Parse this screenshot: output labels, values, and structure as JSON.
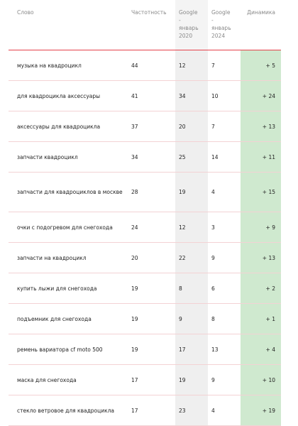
{
  "headers": {
    "word": "Слово",
    "freq": "Частотность",
    "g2020_line1": "Google",
    "g2020_line2": "-",
    "g2020_line3": "январь",
    "g2020_line4": "2020",
    "g2024_line1": "Google",
    "g2024_line2": "-",
    "g2024_line3": "январь",
    "g2024_line4": "2024",
    "dynamics": "Динамика"
  },
  "rows": [
    {
      "word": "музыка на квадроцикл",
      "freq": "44",
      "g2020": "12",
      "g2024": "7",
      "dyn": "+ 5"
    },
    {
      "word": "для квадроцикла аксессуары",
      "freq": "41",
      "g2020": "34",
      "g2024": "10",
      "dyn": "+ 24"
    },
    {
      "word": "аксессуары для квадроцикла",
      "freq": "37",
      "g2020": "20",
      "g2024": "7",
      "dyn": "+ 13"
    },
    {
      "word": "запчасти квадроцикл",
      "freq": "34",
      "g2020": "25",
      "g2024": "14",
      "dyn": "+ 11"
    },
    {
      "word": "запчасти для квадроциклов в москве",
      "freq": "28",
      "g2020": "19",
      "g2024": "4",
      "dyn": "+ 15"
    },
    {
      "word": "очки с подогревом для снегохода",
      "freq": "24",
      "g2020": "12",
      "g2024": "3",
      "dyn": "+ 9"
    },
    {
      "word": "запчасти на квадроцикл",
      "freq": "20",
      "g2020": "22",
      "g2024": "9",
      "dyn": "+ 13"
    },
    {
      "word": "купить лыжи для снегохода",
      "freq": "19",
      "g2020": "8",
      "g2024": "6",
      "dyn": "+ 2"
    },
    {
      "word": "подъемник для снегохода",
      "freq": "19",
      "g2020": "9",
      "g2024": "8",
      "dyn": "+ 1"
    },
    {
      "word": "ремень вариатора cf moto 500",
      "freq": "19",
      "g2020": "17",
      "g2024": "13",
      "dyn": "+ 4"
    },
    {
      "word": "маска для снегохода",
      "freq": "17",
      "g2020": "19",
      "g2024": "9",
      "dyn": "+ 10"
    },
    {
      "word": "стекло ветровое для квадроцикла",
      "freq": "17",
      "g2020": "23",
      "g2024": "4",
      "dyn": "+ 19"
    }
  ],
  "colors": {
    "header_rule": "#e5414b",
    "row_rule": "#f3d2d4",
    "g2020_bg": "#efefef",
    "dynamics_bg": "#cfe9cf"
  }
}
